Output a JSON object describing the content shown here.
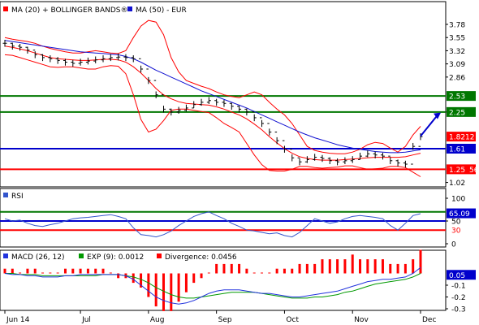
{
  "colors": {
    "price": "#000000",
    "bollinger": "#ff0000",
    "ma50": "#1010d0",
    "support_resistance_green": "#007700",
    "support_blue": "#0000cc",
    "support_red": "#ff0000",
    "arrow": "#0000cc",
    "rsi": "#3355cc",
    "macd": "#2233dd",
    "signal": "#009900",
    "divergence": "#ff0000"
  },
  "chart_data": [
    {
      "type": "line",
      "panel": "price",
      "legend": [
        {
          "label": "MA (20) + BOLLINGER BANDS®",
          "color": "#ff0000"
        },
        {
          "label": "MA (50) - EUR",
          "color": "#1010d0"
        }
      ],
      "y_ticks": [
        "3.78",
        "3.55",
        "3.32",
        "3.09",
        "2.86",
        "2.25",
        "1.02"
      ],
      "ylim": [
        1.0,
        3.95
      ],
      "y_ticks_values": [
        3.78,
        3.55,
        3.32,
        3.09,
        2.86,
        2.25,
        1.02
      ],
      "level_lines": [
        {
          "value": 2.53,
          "label": "2.53",
          "color": "#007700"
        },
        {
          "value": 2.25,
          "label": "2.25",
          "color": "#007700"
        },
        {
          "value": 1.61,
          "label": "1.61",
          "color": "#0000cc"
        },
        {
          "value": 1.25,
          "label": "1.25",
          "color": "#ff0000"
        }
      ],
      "last_price": {
        "value": 1.8212,
        "label": "1.8212",
        "color": "#ff0000"
      },
      "overlapped_tag": "56",
      "forecast_arrow": {
        "from": 1.83,
        "to": 2.24
      },
      "series": [
        {
          "name": "Close",
          "values": [
            3.45,
            3.4,
            3.38,
            3.33,
            3.25,
            3.2,
            3.18,
            3.15,
            3.12,
            3.1,
            3.12,
            3.14,
            3.16,
            3.18,
            3.2,
            3.21,
            3.2,
            3.18,
            3.0,
            2.8,
            2.55,
            2.3,
            2.25,
            2.28,
            2.32,
            2.38,
            2.42,
            2.45,
            2.42,
            2.4,
            2.35,
            2.3,
            2.25,
            2.15,
            2.05,
            1.9,
            1.75,
            1.6,
            1.45,
            1.38,
            1.42,
            1.46,
            1.44,
            1.4,
            1.38,
            1.4,
            1.42,
            1.48,
            1.52,
            1.5,
            1.48,
            1.4,
            1.36,
            1.34,
            1.65,
            1.82
          ]
        },
        {
          "name": "MA (20)",
          "values": [
            3.4,
            3.38,
            3.35,
            3.32,
            3.28,
            3.24,
            3.2,
            3.18,
            3.17,
            3.16,
            3.15,
            3.15,
            3.16,
            3.17,
            3.17,
            3.16,
            3.12,
            3.04,
            2.93,
            2.8,
            2.66,
            2.55,
            2.48,
            2.43,
            2.4,
            2.39,
            2.38,
            2.37,
            2.34,
            2.3,
            2.25,
            2.2,
            2.13,
            2.04,
            1.94,
            1.82,
            1.71,
            1.61,
            1.53,
            1.47,
            1.44,
            1.42,
            1.41,
            1.41,
            1.41,
            1.42,
            1.43,
            1.44,
            1.45,
            1.46,
            1.46,
            1.46,
            1.46,
            1.47,
            1.5,
            1.53
          ]
        },
        {
          "name": "Bollinger Upper",
          "values": [
            3.55,
            3.52,
            3.5,
            3.48,
            3.45,
            3.4,
            3.36,
            3.33,
            3.3,
            3.28,
            3.28,
            3.3,
            3.32,
            3.3,
            3.28,
            3.27,
            3.32,
            3.55,
            3.75,
            3.85,
            3.82,
            3.6,
            3.2,
            2.95,
            2.8,
            2.75,
            2.7,
            2.66,
            2.6,
            2.55,
            2.52,
            2.5,
            2.55,
            2.6,
            2.55,
            2.42,
            2.3,
            2.2,
            2.05,
            1.85,
            1.65,
            1.58,
            1.55,
            1.53,
            1.52,
            1.52,
            1.55,
            1.6,
            1.68,
            1.72,
            1.7,
            1.62,
            1.55,
            1.65,
            1.85,
            2.0
          ]
        },
        {
          "name": "Bollinger Lower",
          "values": [
            3.25,
            3.24,
            3.2,
            3.16,
            3.12,
            3.08,
            3.04,
            3.03,
            3.04,
            3.04,
            3.02,
            3.0,
            3.0,
            3.04,
            3.06,
            3.05,
            2.92,
            2.55,
            2.12,
            1.9,
            1.95,
            2.1,
            2.28,
            2.3,
            2.3,
            2.28,
            2.26,
            2.24,
            2.15,
            2.05,
            1.98,
            1.9,
            1.7,
            1.5,
            1.33,
            1.23,
            1.22,
            1.22,
            1.25,
            1.3,
            1.3,
            1.28,
            1.27,
            1.28,
            1.29,
            1.31,
            1.31,
            1.28,
            1.25,
            1.26,
            1.27,
            1.3,
            1.3,
            1.28,
            1.2,
            1.12
          ]
        },
        {
          "name": "MA (50)",
          "values": [
            3.5,
            3.48,
            3.46,
            3.44,
            3.42,
            3.4,
            3.38,
            3.36,
            3.34,
            3.32,
            3.3,
            3.29,
            3.28,
            3.27,
            3.26,
            3.25,
            3.22,
            3.18,
            3.12,
            3.05,
            2.98,
            2.92,
            2.86,
            2.8,
            2.74,
            2.68,
            2.62,
            2.57,
            2.52,
            2.47,
            2.42,
            2.37,
            2.32,
            2.26,
            2.2,
            2.14,
            2.08,
            2.02,
            1.96,
            1.9,
            1.85,
            1.8,
            1.76,
            1.72,
            1.68,
            1.65,
            1.62,
            1.6,
            1.58,
            1.56,
            1.55,
            1.54,
            1.54,
            1.55,
            1.57,
            1.59
          ]
        }
      ]
    },
    {
      "type": "line",
      "panel": "rsi",
      "legend": [
        {
          "label": "RSI",
          "color": "#3355cc"
        }
      ],
      "y_ticks": [
        "100",
        "50",
        "0"
      ],
      "ylim": [
        0,
        100
      ],
      "y_ticks_values": [
        100,
        50,
        0
      ],
      "level_lines": [
        {
          "value": 70,
          "label": "70",
          "color": "#007700"
        },
        {
          "value": 50,
          "label": "50",
          "color": "#0000cc"
        },
        {
          "value": 30,
          "label": "30",
          "color": "#ff0000"
        }
      ],
      "last_value": {
        "value": 65.09,
        "label": "65.09",
        "color": "#0000cc"
      },
      "series": [
        {
          "name": "RSI",
          "values": [
            55,
            50,
            52,
            45,
            40,
            38,
            42,
            45,
            50,
            55,
            57,
            58,
            60,
            62,
            64,
            60,
            55,
            35,
            20,
            18,
            15,
            20,
            28,
            40,
            50,
            60,
            66,
            70,
            62,
            55,
            45,
            38,
            30,
            28,
            25,
            22,
            24,
            18,
            15,
            25,
            40,
            55,
            50,
            45,
            48,
            55,
            60,
            62,
            60,
            58,
            55,
            40,
            30,
            45,
            62,
            66
          ]
        }
      ]
    },
    {
      "type": "bar",
      "panel": "macd",
      "legend": [
        {
          "label": "MACD (26, 12)",
          "color": "#2233dd"
        },
        {
          "label": "EXP (9): 0.0012",
          "color": "#009900"
        },
        {
          "label": "Divergence: 0.0456",
          "color": "#ff0000"
        }
      ],
      "y_ticks": [
        "-0.1",
        "-0.2",
        "-0.3"
      ],
      "ylim": [
        -0.3,
        0.1
      ],
      "y_ticks_values": [
        -0.1,
        -0.2,
        -0.3
      ],
      "last_value": {
        "value": 0.05,
        "label": "0.05",
        "color": "#0000cc"
      },
      "series": [
        {
          "name": "MACD",
          "values": [
            0.0,
            -0.01,
            -0.01,
            -0.02,
            -0.02,
            -0.03,
            -0.03,
            -0.03,
            -0.02,
            -0.02,
            -0.01,
            -0.01,
            -0.01,
            -0.01,
            -0.01,
            -0.01,
            -0.02,
            -0.05,
            -0.1,
            -0.15,
            -0.2,
            -0.23,
            -0.25,
            -0.26,
            -0.25,
            -0.23,
            -0.2,
            -0.17,
            -0.15,
            -0.14,
            -0.14,
            -0.14,
            -0.15,
            -0.16,
            -0.17,
            -0.17,
            -0.18,
            -0.19,
            -0.2,
            -0.2,
            -0.19,
            -0.18,
            -0.17,
            -0.16,
            -0.15,
            -0.13,
            -0.11,
            -0.09,
            -0.07,
            -0.06,
            -0.05,
            -0.05,
            -0.04,
            -0.03,
            0.0,
            0.05
          ]
        },
        {
          "name": "EXP (9)",
          "values": [
            0.0,
            0.0,
            -0.01,
            -0.01,
            -0.01,
            -0.02,
            -0.02,
            -0.02,
            -0.02,
            -0.02,
            -0.02,
            -0.02,
            -0.02,
            -0.01,
            -0.01,
            -0.01,
            -0.02,
            -0.03,
            -0.05,
            -0.08,
            -0.12,
            -0.15,
            -0.18,
            -0.2,
            -0.21,
            -0.21,
            -0.2,
            -0.19,
            -0.18,
            -0.17,
            -0.16,
            -0.16,
            -0.16,
            -0.16,
            -0.17,
            -0.18,
            -0.19,
            -0.2,
            -0.21,
            -0.21,
            -0.21,
            -0.2,
            -0.2,
            -0.19,
            -0.18,
            -0.16,
            -0.15,
            -0.13,
            -0.11,
            -0.09,
            -0.08,
            -0.07,
            -0.06,
            -0.05,
            -0.03,
            0.0
          ]
        },
        {
          "name": "Divergence",
          "values": [
            0.01,
            0.01,
            0.0,
            0.01,
            0.01,
            0.0,
            0.0,
            0.0,
            0.01,
            0.01,
            0.01,
            0.01,
            0.01,
            0.01,
            0.0,
            -0.01,
            -0.01,
            -0.02,
            -0.03,
            -0.05,
            -0.07,
            -0.08,
            -0.08,
            -0.06,
            -0.04,
            -0.02,
            -0.01,
            0.0,
            0.02,
            0.02,
            0.02,
            0.02,
            0.01,
            0.0,
            0.0,
            0.0,
            0.01,
            0.01,
            0.01,
            0.02,
            0.02,
            0.02,
            0.03,
            0.03,
            0.03,
            0.03,
            0.04,
            0.03,
            0.03,
            0.03,
            0.03,
            0.02,
            0.02,
            0.02,
            0.03,
            0.05
          ]
        }
      ],
      "x_ticks": [
        "Jun 14",
        "Jul",
        "Aug",
        "Sep",
        "Oct",
        "Nov",
        "Dec"
      ],
      "x_ticks_index": [
        0,
        10,
        19,
        28,
        37,
        46,
        55
      ]
    }
  ]
}
